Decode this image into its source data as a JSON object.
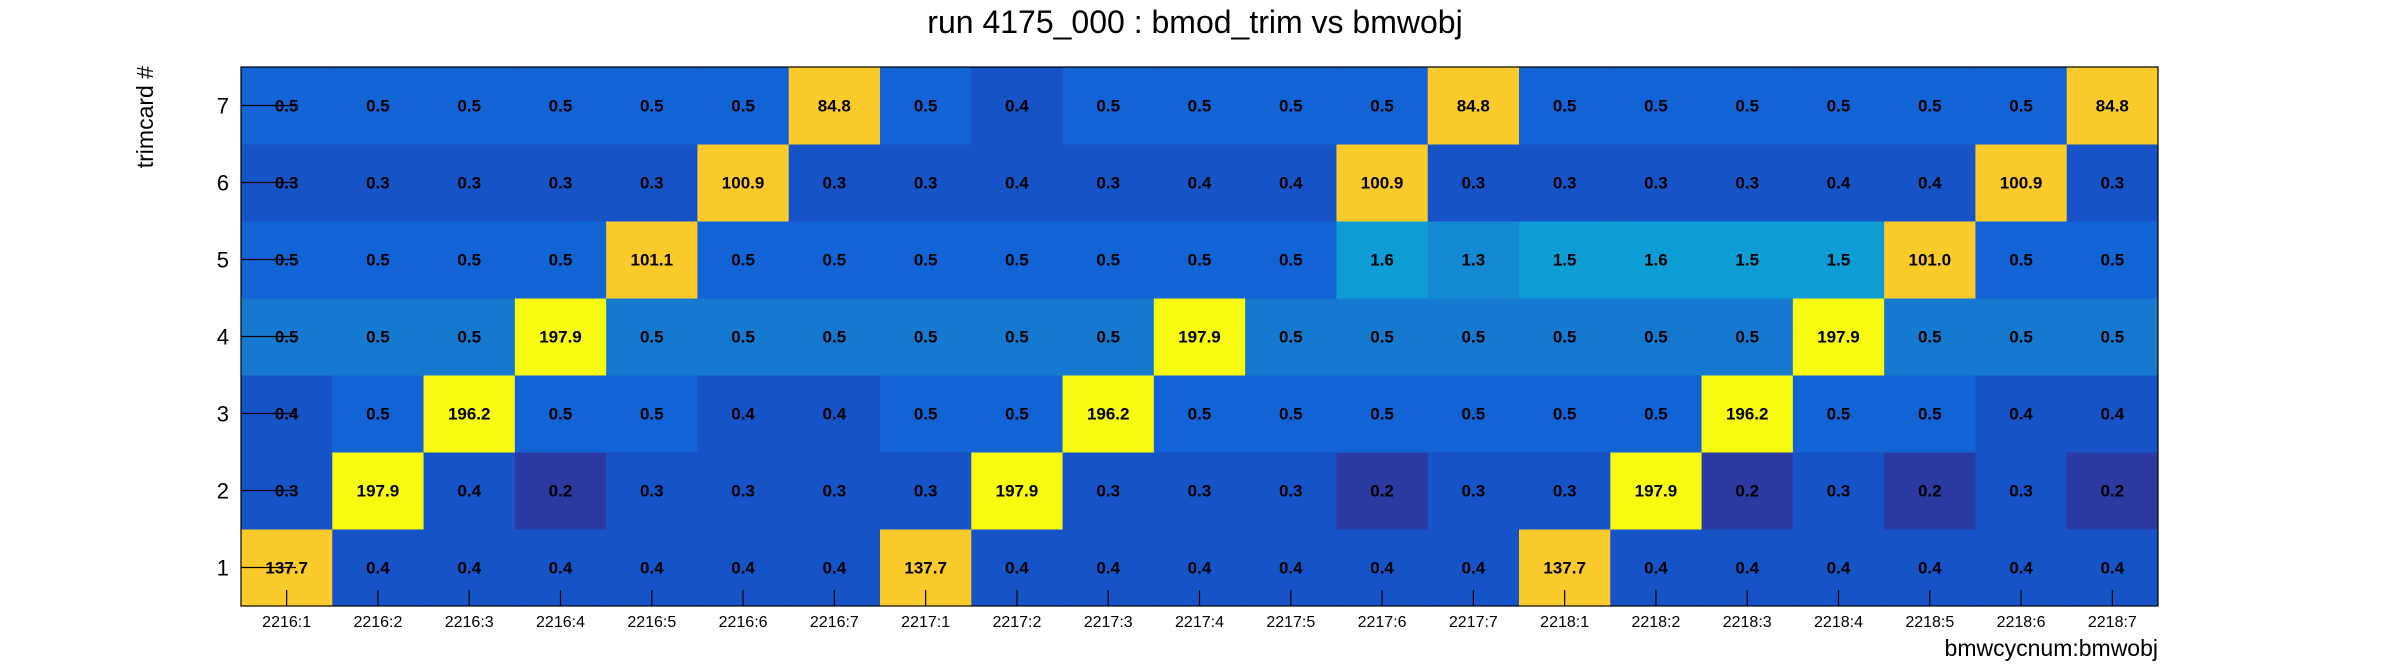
{
  "chart_data": {
    "type": "heatmap",
    "title": "run 4175_000 : bmod_trim vs bmwobj",
    "xlabel": "bmwcycnum:bmwobj",
    "ylabel": "trimcard #",
    "x_categories": [
      "2216:1",
      "2216:2",
      "2216:3",
      "2216:4",
      "2216:5",
      "2216:6",
      "2216:7",
      "2217:1",
      "2217:2",
      "2217:3",
      "2217:4",
      "2217:5",
      "2217:6",
      "2217:7",
      "2218:1",
      "2218:2",
      "2218:3",
      "2218:4",
      "2218:5",
      "2218:6",
      "2218:7"
    ],
    "y_categories": [
      "1",
      "2",
      "3",
      "4",
      "5",
      "6",
      "7"
    ],
    "values": [
      [
        "137.7",
        "0.4",
        "0.4",
        "0.4",
        "0.4",
        "0.4",
        "0.4",
        "137.7",
        "0.4",
        "0.4",
        "0.4",
        "0.4",
        "0.4",
        "0.4",
        "137.7",
        "0.4",
        "0.4",
        "0.4",
        "0.4",
        "0.4",
        "0.4"
      ],
      [
        "0.3",
        "197.9",
        "0.4",
        "0.2",
        "0.3",
        "0.3",
        "0.3",
        "0.3",
        "197.9",
        "0.3",
        "0.3",
        "0.3",
        "0.2",
        "0.3",
        "0.3",
        "197.9",
        "0.2",
        "0.3",
        "0.2",
        "0.3",
        "0.2"
      ],
      [
        "0.4",
        "0.5",
        "196.2",
        "0.5",
        "0.5",
        "0.4",
        "0.4",
        "0.5",
        "0.5",
        "196.2",
        "0.5",
        "0.5",
        "0.5",
        "0.5",
        "0.5",
        "0.5",
        "196.2",
        "0.5",
        "0.5",
        "0.4",
        "0.4"
      ],
      [
        "0.5",
        "0.5",
        "0.5",
        "197.9",
        "0.5",
        "0.5",
        "0.5",
        "0.5",
        "0.5",
        "0.5",
        "197.9",
        "0.5",
        "0.5",
        "0.5",
        "0.5",
        "0.5",
        "0.5",
        "197.9",
        "0.5",
        "0.5",
        "0.5"
      ],
      [
        "0.5",
        "0.5",
        "0.5",
        "0.5",
        "101.1",
        "0.5",
        "0.5",
        "0.5",
        "0.5",
        "0.5",
        "0.5",
        "0.5",
        "1.6",
        "1.3",
        "1.5",
        "1.6",
        "1.5",
        "1.5",
        "101.0",
        "0.5",
        "0.5"
      ],
      [
        "0.3",
        "0.3",
        "0.3",
        "0.3",
        "0.3",
        "100.9",
        "0.3",
        "0.3",
        "0.4",
        "0.3",
        "0.4",
        "0.4",
        "100.9",
        "0.3",
        "0.3",
        "0.3",
        "0.3",
        "0.4",
        "0.4",
        "100.9",
        "0.3"
      ],
      [
        "0.5",
        "0.5",
        "0.5",
        "0.5",
        "0.5",
        "0.5",
        "84.8",
        "0.5",
        "0.4",
        "0.5",
        "0.5",
        "0.5",
        "0.5",
        "84.8",
        "0.5",
        "0.5",
        "0.5",
        "0.5",
        "0.5",
        "0.5",
        "84.8"
      ]
    ],
    "colors": {
      "high": "#f8fa12",
      "mid_high": "#fbcb2c",
      "cyan": "#0e9cd4",
      "steel_blue": "#1579d0",
      "blue": "#1263d6",
      "dark_blue": "#1553c7",
      "navy": "#2a3aa0"
    }
  }
}
